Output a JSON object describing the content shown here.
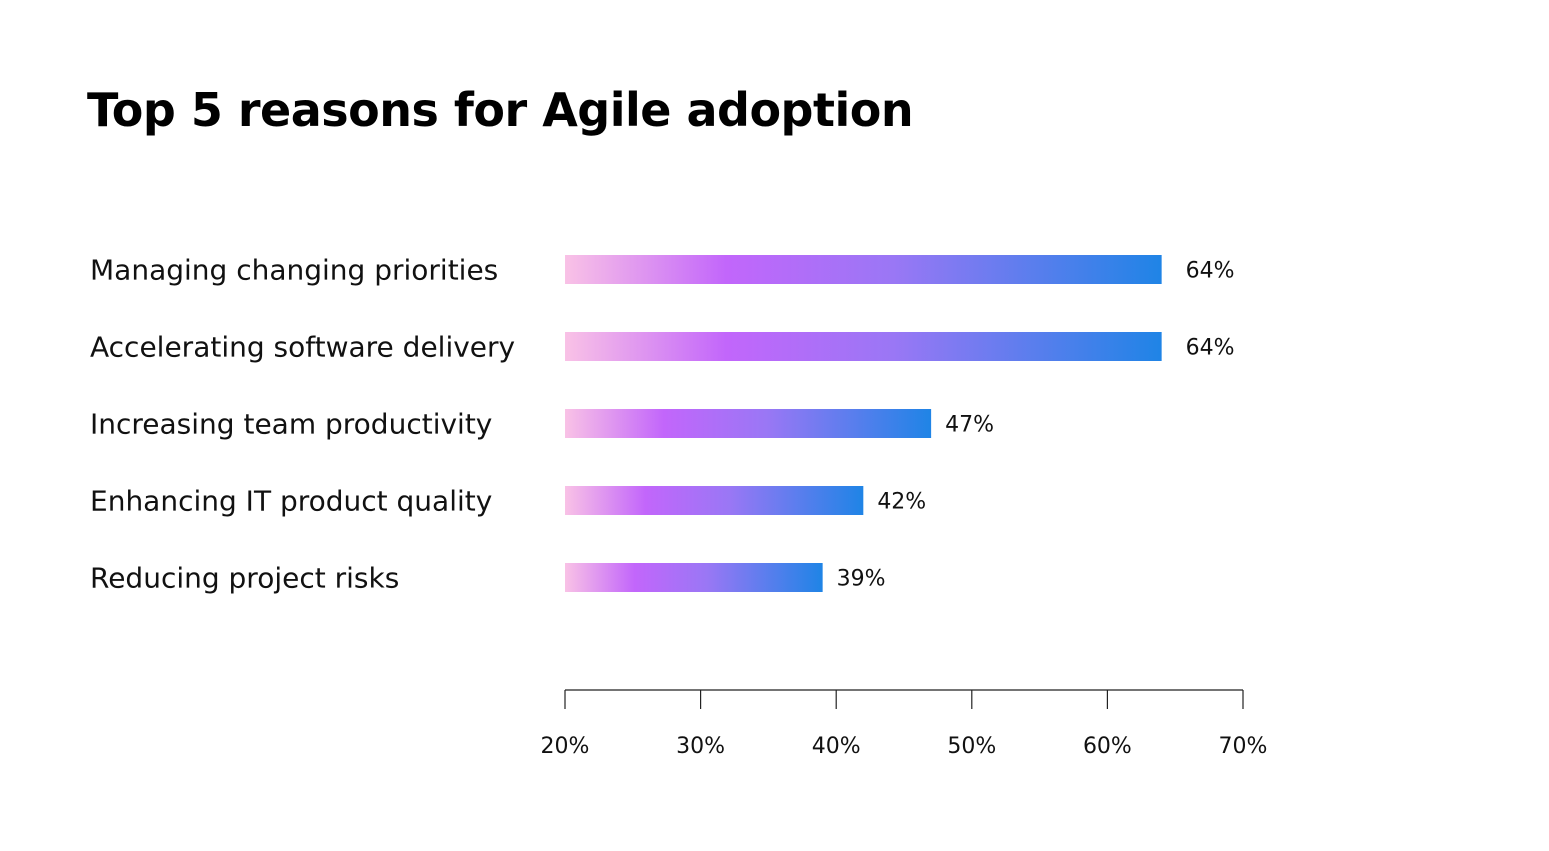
{
  "chart_data": {
    "type": "bar",
    "orientation": "horizontal",
    "title": "Top 5 reasons for Agile adoption",
    "categories": [
      "Managing changing priorities",
      "Accelerating software delivery",
      "Increasing team productivity",
      "Enhancing IT product quality",
      "Reducing project risks"
    ],
    "values": [
      64,
      64,
      47,
      42,
      39
    ],
    "value_labels": [
      "64%",
      "64%",
      "47%",
      "42%",
      "39%"
    ],
    "xlim": [
      20,
      70
    ],
    "xticks": [
      20,
      30,
      40,
      50,
      60,
      70
    ],
    "xtick_labels": [
      "20%",
      "30%",
      "40%",
      "50%",
      "60%",
      "70%"
    ],
    "grid": false,
    "legend": "none",
    "bar_gradient": [
      "#f9c2e6",
      "#c266fb",
      "#9a77f5",
      "#1f84e6"
    ]
  }
}
